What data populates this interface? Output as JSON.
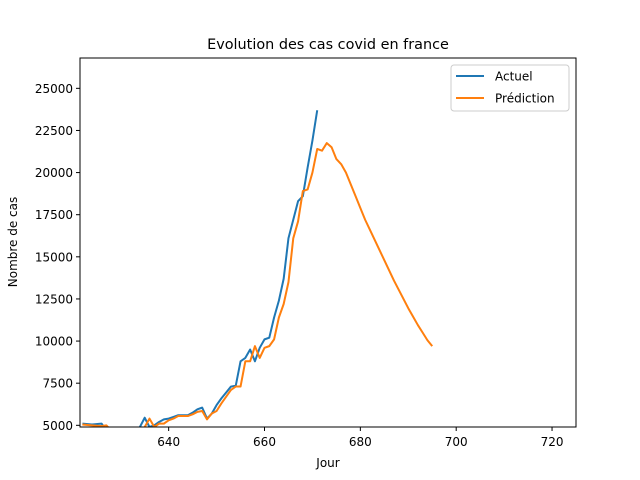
{
  "chart_data": {
    "type": "line",
    "title": "Evolution des cas covid en france",
    "xlabel": "Jour",
    "ylabel": "Nombre de cas",
    "xlim": [
      621.5,
      725
    ],
    "ylim": [
      4900,
      26800
    ],
    "xticks": [
      640,
      660,
      680,
      700,
      720
    ],
    "yticks": [
      5000,
      7500,
      10000,
      12500,
      15000,
      17500,
      20000,
      22500,
      25000
    ],
    "grid": false,
    "legend_position": "top-right",
    "series": [
      {
        "name": "Actuel",
        "color": "#1f77b4",
        "x": [
          622,
          624,
          626,
          627,
          628,
          629,
          630,
          631,
          632,
          633,
          634,
          635,
          636,
          637,
          638,
          639,
          640,
          641,
          642,
          643,
          644,
          645,
          646,
          647,
          648,
          649,
          650,
          651,
          652,
          653,
          654,
          655,
          656,
          657,
          658,
          659,
          660,
          661,
          662,
          663,
          664,
          665,
          666,
          667,
          668,
          669,
          670,
          671
        ],
        "y": [
          5100,
          5050,
          5100,
          4700,
          4650,
          4600,
          4800,
          4800,
          4700,
          4700,
          4900,
          5450,
          4900,
          5000,
          5200,
          5350,
          5400,
          5500,
          5600,
          5600,
          5600,
          5750,
          5950,
          6050,
          5400,
          5700,
          6200,
          6600,
          6950,
          7300,
          7350,
          8800,
          9000,
          9500,
          8800,
          9600,
          10100,
          10200,
          11400,
          12400,
          13700,
          16100,
          17200,
          18300,
          18600,
          20300,
          21900,
          23700
        ]
      },
      {
        "name": "Prédiction",
        "color": "#ff7f0e",
        "x": [
          622,
          624,
          626,
          627,
          628,
          629,
          630,
          631,
          632,
          633,
          634,
          635,
          636,
          637,
          638,
          639,
          640,
          641,
          642,
          643,
          644,
          645,
          646,
          647,
          648,
          649,
          650,
          651,
          652,
          653,
          654,
          655,
          656,
          657,
          658,
          659,
          660,
          661,
          662,
          663,
          664,
          665,
          666,
          667,
          668,
          669,
          670,
          671,
          672,
          673,
          674,
          675,
          676,
          677,
          678,
          679,
          680,
          681,
          682,
          683,
          684,
          685,
          686,
          687,
          688,
          689,
          690,
          691,
          692,
          693,
          694,
          695
        ],
        "y": [
          5050,
          5000,
          4950,
          5000,
          4700,
          4650,
          4600,
          4750,
          4800,
          4700,
          4750,
          4900,
          5400,
          4900,
          5100,
          5100,
          5300,
          5400,
          5550,
          5550,
          5550,
          5650,
          5800,
          5850,
          5350,
          5700,
          5850,
          6300,
          6700,
          7100,
          7300,
          7300,
          8800,
          8800,
          9700,
          9000,
          9600,
          9700,
          10100,
          11400,
          12200,
          13500,
          16100,
          17100,
          18900,
          19000,
          20000,
          21400,
          21300,
          21750,
          21500,
          20800,
          20500,
          20000,
          19300,
          18600,
          17900,
          17200,
          16600,
          16000,
          15400,
          14800,
          14200,
          13600,
          13050,
          12500,
          11950,
          11450,
          10950,
          10500,
          10050,
          9700
        ]
      }
    ]
  }
}
